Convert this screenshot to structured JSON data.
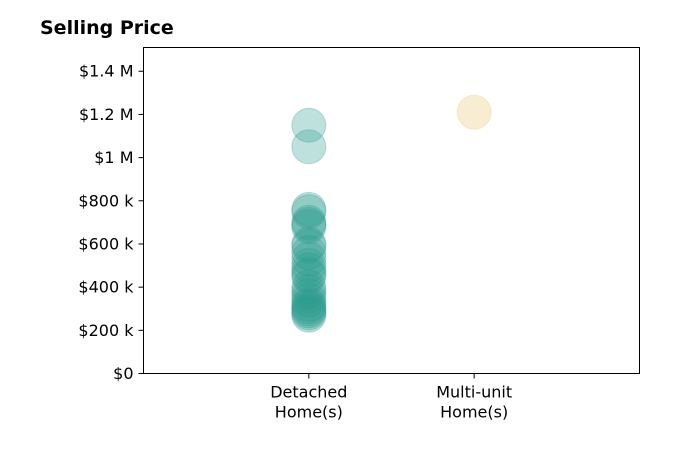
{
  "chart_data": {
    "type": "scatter",
    "title": "Selling Price",
    "xlabel": "",
    "ylabel": "",
    "categories": [
      "Detached\nHome(s)",
      "Multi-unit\nHome(s)"
    ],
    "y_ticks": [
      {
        "value": 0,
        "label": "$0"
      },
      {
        "value": 200000,
        "label": "$200 k"
      },
      {
        "value": 400000,
        "label": "$400 k"
      },
      {
        "value": 600000,
        "label": "$600 k"
      },
      {
        "value": 800000,
        "label": "$800 k"
      },
      {
        "value": 1000000,
        "label": "$1 M"
      },
      {
        "value": 1200000,
        "label": "$1.2 M"
      },
      {
        "value": 1400000,
        "label": "$1.4 M"
      }
    ],
    "ylim": [
      0,
      1510000
    ],
    "xlim": [
      0,
      3
    ],
    "grid": false,
    "series": [
      {
        "category_index": 0,
        "color": "#2a9d8f",
        "values": [
          1150000,
          1050000,
          760000,
          750000,
          700000,
          690000,
          680000,
          600000,
          590000,
          560000,
          530000,
          500000,
          480000,
          460000,
          450000,
          400000,
          380000,
          360000,
          340000,
          320000,
          310000,
          300000,
          290000,
          280000,
          270000
        ]
      },
      {
        "category_index": 1,
        "color": "#e9c46a",
        "values": [
          1210000
        ]
      }
    ]
  }
}
